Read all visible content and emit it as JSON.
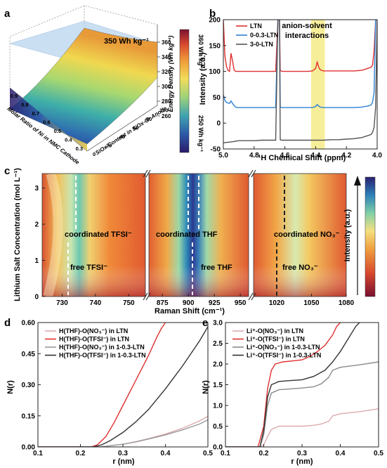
{
  "panels": {
    "a": {
      "label": "a",
      "annotation": "350 Wh kg⁻¹",
      "xlabel": "Molar Ratio of Ni in NMC Cathode",
      "ylabel": "SiOx Content in SiOx-Gr Anode",
      "zlabel": "Energy Density (Wh kg⁻¹)",
      "x_ticks": [
        "0.3",
        "0.4",
        "0.5",
        "0.6",
        "0.7",
        "0.8",
        "0.9"
      ],
      "y_ticks": [
        "0",
        "20",
        "40",
        "60",
        "80",
        "100"
      ],
      "z_ticks": [
        "260",
        "280",
        "300",
        "320",
        "340",
        "360"
      ],
      "colorbar_top": "360 Wh kg⁻¹",
      "colorbar_bottom": "250 Wh kg⁻¹",
      "colors": [
        "#2a1a6a",
        "#2d5aa8",
        "#3fa3b0",
        "#9fd27a",
        "#f2dc5a",
        "#ef9a3a",
        "#d8492e",
        "#8e1b2b"
      ]
    },
    "b": {
      "label": "b",
      "xlabel": "¹H Chemical Shift (ppm)",
      "ylabel": "Intensity (a.u.)",
      "annotation_line1": "anion-solvent",
      "annotation_line2": "interactions",
      "highlight_color": "#f7ee9a"
    },
    "c": {
      "label": "c",
      "xlabel": "Raman Shift (cm⁻¹)",
      "ylabel": "Lithium Salt Concentration (mol L⁻¹)",
      "colorbar_label": "Intensity (a.u.)",
      "sub1_xticks": [
        "730",
        "740",
        "750"
      ],
      "sub2_xticks": [
        "875",
        "900",
        "925",
        "950"
      ],
      "sub3_xticks": [
        "1020",
        "1050",
        "1080"
      ],
      "yticks": [
        "0",
        "1",
        "2",
        "3"
      ],
      "labels": {
        "coord_tfsi": "coordinated TFSI⁻",
        "free_tfsi": "free TFSI⁻",
        "coord_thf": "coordinated THF",
        "free_thf": "free THF",
        "coord_no3": "coordinated NO₃⁻",
        "free_no3": "free NO₃⁻"
      }
    },
    "d": {
      "label": "d",
      "xlabel": "r (nm)",
      "ylabel": "N(r)"
    },
    "e": {
      "label": "e",
      "xlabel": "r (nm)",
      "ylabel": "N(r)"
    }
  },
  "chart_data": [
    {
      "panel": "b",
      "type": "line",
      "xlabel": "¹H Chemical Shift (ppm)",
      "ylabel": "Intensity (a.u.)",
      "xlim": [
        5.0,
        4.0
      ],
      "ylim": [
        -50,
        200
      ],
      "x_ticks": [
        "5.0",
        "4.8",
        "4.6",
        "4.4",
        "4.2",
        "4.0"
      ],
      "y_ticks": [
        "-50",
        "0",
        "50",
        "100",
        "150",
        "200"
      ],
      "highlight_x": [
        4.43,
        4.34
      ],
      "series": [
        {
          "name": "LTN",
          "color": "#e03030",
          "x": [
            5.0,
            4.99,
            4.98,
            4.97,
            4.96,
            4.95,
            4.94,
            4.93,
            4.92,
            4.9,
            4.85,
            4.8,
            4.75,
            4.7,
            4.66,
            4.645,
            4.635,
            4.63,
            4.62,
            4.6,
            4.55,
            4.5,
            4.45,
            4.42,
            4.4,
            4.39,
            4.38,
            4.37,
            4.35,
            4.3,
            4.25,
            4.2,
            4.15,
            4.1,
            4.08,
            4.06,
            4.04,
            4.03,
            4.02,
            4.01,
            4.0
          ],
          "y": [
            200,
            130,
            110,
            102,
            100,
            135,
            120,
            103,
            100,
            100,
            100,
            100,
            100,
            100,
            100,
            200,
            200,
            102,
            100,
            100,
            100,
            100,
            100,
            101,
            106,
            118,
            108,
            103,
            101,
            101,
            101,
            101,
            101,
            102,
            104,
            106,
            108,
            112,
            140,
            200,
            200
          ]
        },
        {
          "name": "0-0.3-LTN",
          "color": "#2d82d4",
          "x": [
            5.0,
            4.99,
            4.98,
            4.96,
            4.95,
            4.94,
            4.93,
            4.92,
            4.91,
            4.9,
            4.85,
            4.8,
            4.75,
            4.7,
            4.66,
            4.645,
            4.635,
            4.63,
            4.62,
            4.6,
            4.55,
            4.5,
            4.45,
            4.42,
            4.4,
            4.39,
            4.38,
            4.37,
            4.35,
            4.3,
            4.25,
            4.2,
            4.15,
            4.1,
            4.08,
            4.06,
            4.04,
            4.03,
            4.02,
            4.01,
            4.0
          ],
          "y": [
            55,
            44,
            40,
            38,
            43,
            38,
            34,
            31,
            30,
            30,
            30,
            30,
            30,
            30,
            30,
            200,
            200,
            31,
            30,
            30,
            30,
            30,
            30,
            30,
            32,
            36,
            33,
            31,
            30,
            30,
            30,
            30,
            30,
            31,
            32,
            33,
            35,
            40,
            60,
            200,
            200
          ]
        },
        {
          "name": "3-0-LTN",
          "color": "#555555",
          "x": [
            5.0,
            4.97,
            4.94,
            4.92,
            4.9,
            4.85,
            4.8,
            4.75,
            4.7,
            4.66,
            4.645,
            4.635,
            4.63,
            4.62,
            4.6,
            4.55,
            4.5,
            4.45,
            4.4,
            4.35,
            4.3,
            4.25,
            4.2,
            4.15,
            4.1,
            4.08,
            4.06,
            4.04,
            4.03,
            4.02,
            4.01,
            4.0
          ],
          "y": [
            -38,
            -37,
            -36,
            -35,
            -34,
            -34,
            -34,
            -33,
            -33,
            -33,
            200,
            200,
            -32,
            -33,
            -33,
            -33,
            -33,
            -33,
            -33,
            -33,
            -32,
            -32,
            -31,
            -30,
            -28,
            -26,
            -24,
            -22,
            -18,
            -8,
            30,
            200
          ]
        }
      ]
    },
    {
      "panel": "d",
      "type": "line",
      "xlabel": "r (nm)",
      "ylabel": "N(r)",
      "xlim": [
        0.1,
        0.5
      ],
      "ylim": [
        0,
        0.6
      ],
      "x_ticks": [
        "0.1",
        "0.2",
        "0.3",
        "0.4",
        "0.5"
      ],
      "y_ticks": [
        "0.00",
        "0.15",
        "0.30",
        "0.45",
        "0.60"
      ],
      "series": [
        {
          "name": "H(THF)-O(NO₃⁻) in LTN",
          "color": "#dcaaae",
          "x": [
            0.1,
            0.24,
            0.26,
            0.28,
            0.3,
            0.33,
            0.36,
            0.4,
            0.44,
            0.48,
            0.5
          ],
          "y": [
            0,
            0,
            0.003,
            0.008,
            0.013,
            0.025,
            0.04,
            0.062,
            0.09,
            0.125,
            0.148
          ]
        },
        {
          "name": "H(THF)-O(TFSI⁻) in LTN",
          "color": "#e03030",
          "x": [
            0.1,
            0.225,
            0.24,
            0.26,
            0.28,
            0.3,
            0.32,
            0.34,
            0.36,
            0.38,
            0.39,
            0.4
          ],
          "y": [
            0,
            0,
            0.01,
            0.05,
            0.12,
            0.2,
            0.28,
            0.36,
            0.44,
            0.53,
            0.57,
            0.62
          ]
        },
        {
          "name": "H(THF)-O(NO₃⁻) in 1-0.3-LTN",
          "color": "#9a9a9a",
          "x": [
            0.1,
            0.245,
            0.26,
            0.28,
            0.3,
            0.33,
            0.36,
            0.4,
            0.44,
            0.48,
            0.5
          ],
          "y": [
            0,
            0,
            0.003,
            0.008,
            0.013,
            0.024,
            0.038,
            0.058,
            0.082,
            0.11,
            0.13
          ]
        },
        {
          "name": "H(THF)-O(TFSI⁻) in 1-0.3-LTN",
          "color": "#333333",
          "x": [
            0.1,
            0.23,
            0.25,
            0.27,
            0.3,
            0.33,
            0.36,
            0.4,
            0.44,
            0.48,
            0.5
          ],
          "y": [
            0,
            0,
            0.01,
            0.03,
            0.07,
            0.12,
            0.18,
            0.28,
            0.39,
            0.51,
            0.58
          ]
        }
      ]
    },
    {
      "panel": "e",
      "type": "line",
      "xlabel": "r (nm)",
      "ylabel": "N(r)",
      "xlim": [
        0.1,
        0.5
      ],
      "ylim": [
        0,
        3.0
      ],
      "x_ticks": [
        "0.1",
        "0.2",
        "0.3",
        "0.4",
        "0.5"
      ],
      "y_ticks": [
        "0.0",
        "0.5",
        "1.0",
        "1.5",
        "2.0",
        "2.5",
        "3.0"
      ],
      "series": [
        {
          "name": "Li⁺-O(NO₃⁻) in LTN",
          "color": "#dcaaae",
          "x": [
            0.1,
            0.19,
            0.2,
            0.21,
            0.22,
            0.24,
            0.27,
            0.3,
            0.33,
            0.35,
            0.37,
            0.38,
            0.4,
            0.45,
            0.5
          ],
          "y": [
            0,
            0,
            0.05,
            0.25,
            0.42,
            0.5,
            0.5,
            0.5,
            0.52,
            0.55,
            0.62,
            0.75,
            0.8,
            0.85,
            0.92
          ]
        },
        {
          "name": "Li⁺-O(TFSI⁻) in LTN",
          "color": "#e03030",
          "x": [
            0.1,
            0.185,
            0.2,
            0.21,
            0.22,
            0.23,
            0.25,
            0.28,
            0.3,
            0.32,
            0.34,
            0.36,
            0.38,
            0.39,
            0.4
          ],
          "y": [
            0,
            0,
            0.5,
            1.4,
            1.85,
            2.0,
            2.05,
            2.08,
            2.1,
            2.18,
            2.3,
            2.45,
            2.7,
            2.9,
            3.05
          ]
        },
        {
          "name": "Li⁺-O(NO₃⁻) in 1-0.3-LTN",
          "color": "#8a8a8a",
          "x": [
            0.1,
            0.19,
            0.2,
            0.21,
            0.22,
            0.24,
            0.27,
            0.3,
            0.33,
            0.35,
            0.37,
            0.38,
            0.4,
            0.45,
            0.5
          ],
          "y": [
            0,
            0,
            0.3,
            1.0,
            1.3,
            1.38,
            1.4,
            1.42,
            1.45,
            1.52,
            1.68,
            1.85,
            1.92,
            1.98,
            2.05
          ]
        },
        {
          "name": "Li⁺-O(TFSI⁻) in 1-0.3-LTN",
          "color": "#333333",
          "x": [
            0.1,
            0.19,
            0.2,
            0.21,
            0.22,
            0.24,
            0.27,
            0.3,
            0.33,
            0.36,
            0.38,
            0.4,
            0.42,
            0.44,
            0.45
          ],
          "y": [
            0,
            0,
            0.4,
            1.2,
            1.5,
            1.58,
            1.6,
            1.62,
            1.7,
            1.85,
            2.05,
            2.3,
            2.6,
            2.9,
            3.05
          ]
        }
      ]
    }
  ]
}
